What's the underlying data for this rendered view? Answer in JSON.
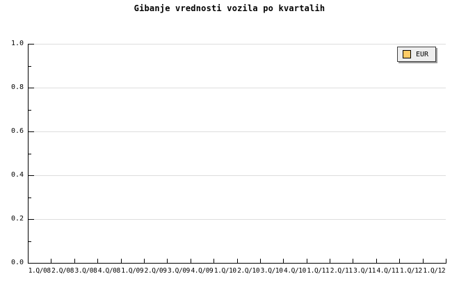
{
  "colors": {
    "axis": "#000000",
    "gridline": "#dddddd",
    "text": "#000000",
    "background": "#ffffff",
    "legend_bg": "#eeeeee",
    "legend_border": "#404040",
    "legend_shadow": "#9a9a9a",
    "swatch_fill": "#ffcc66",
    "swatch_border": "#000000"
  },
  "chart_data": {
    "type": "bar",
    "title": "Gibanje vrednosti vozila po kvartalih",
    "categories": [
      "1.Q/08",
      "2.Q/08",
      "3.Q/08",
      "4.Q/08",
      "1.Q/09",
      "2.Q/09",
      "3.Q/09",
      "4.Q/09",
      "1.Q/10",
      "2.Q/10",
      "3.Q/10",
      "4.Q/10",
      "1.Q/11",
      "2.Q/11",
      "3.Q/11",
      "4.Q/11",
      "1.Q/12",
      "1.Q/12"
    ],
    "series": [
      {
        "name": "EUR",
        "color": "#ffcc66",
        "values": []
      }
    ],
    "xlabel": "",
    "ylabel": "",
    "ylim": [
      0.0,
      1.0
    ],
    "y_tick_labels": [
      "0.0",
      "0.2",
      "0.4",
      "0.6",
      "0.8",
      "1.0"
    ],
    "y_minor_tick_step": 0.1,
    "grid": "horizontal",
    "legend": {
      "position": "top-right",
      "entries": [
        "EUR"
      ]
    }
  }
}
